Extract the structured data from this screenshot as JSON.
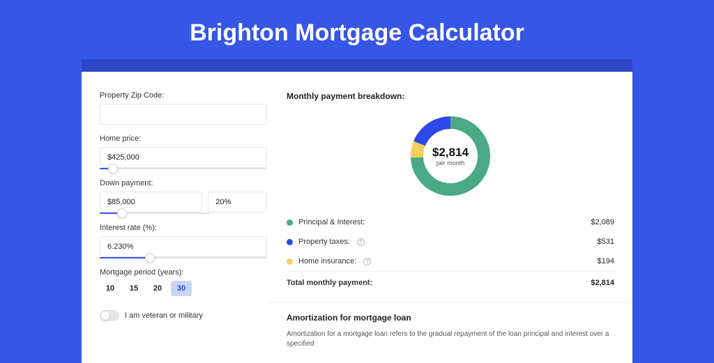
{
  "page": {
    "title": "Brighton Mortgage Calculator",
    "background_color": "#3656e6",
    "header_band_color": "#2d47c6",
    "card_background": "#ffffff"
  },
  "form": {
    "zip_label": "Property Zip Code:",
    "zip_value": "",
    "home_price_label": "Home price:",
    "home_price_value": "$425,000",
    "home_price_slider_pct": 8,
    "down_payment_label": "Down payment:",
    "down_payment_value": "$85,000",
    "down_payment_pct_value": "20%",
    "down_payment_slider_pct": 20,
    "interest_label": "Interest rate (%):",
    "interest_value": "6.230%",
    "interest_slider_pct": 30,
    "period_label": "Mortgage period (years):",
    "period_options": [
      "10",
      "15",
      "20",
      "30"
    ],
    "period_selected": "30",
    "veteran_label": "I am veteran or military",
    "veteran_on": false
  },
  "breakdown": {
    "title": "Monthly payment breakdown:",
    "donut": {
      "amount": "$2,814",
      "sub": "per month",
      "segments": [
        {
          "name": "principal_interest",
          "value": 2089,
          "pct": 74.2,
          "color": "#4aa986"
        },
        {
          "name": "property_taxes",
          "value": 531,
          "pct": 18.9,
          "color": "#2d47e8"
        },
        {
          "name": "home_insurance",
          "value": 194,
          "pct": 6.9,
          "color": "#f2cf5b"
        }
      ],
      "stroke_width": 18
    },
    "rows": [
      {
        "label": "Principal & Interest:",
        "amount": "$2,089",
        "color": "#4aa986",
        "help": false
      },
      {
        "label": "Property taxes:",
        "amount": "$531",
        "color": "#2d47e8",
        "help": true
      },
      {
        "label": "Home insurance:",
        "amount": "$194",
        "color": "#f2cf5b",
        "help": true
      }
    ],
    "total_label": "Total monthly payment:",
    "total_amount": "$2,814"
  },
  "amortization": {
    "title": "Amortization for mortgage loan",
    "text": "Amortization for a mortgage loan refers to the gradual repayment of the loan principal and interest over a specified"
  },
  "style": {
    "slider_fill": "#3656e6",
    "slider_track": "#e2e4e8",
    "period_selected_bg": "#c8d4f5",
    "period_selected_fg": "#2d47c6"
  }
}
